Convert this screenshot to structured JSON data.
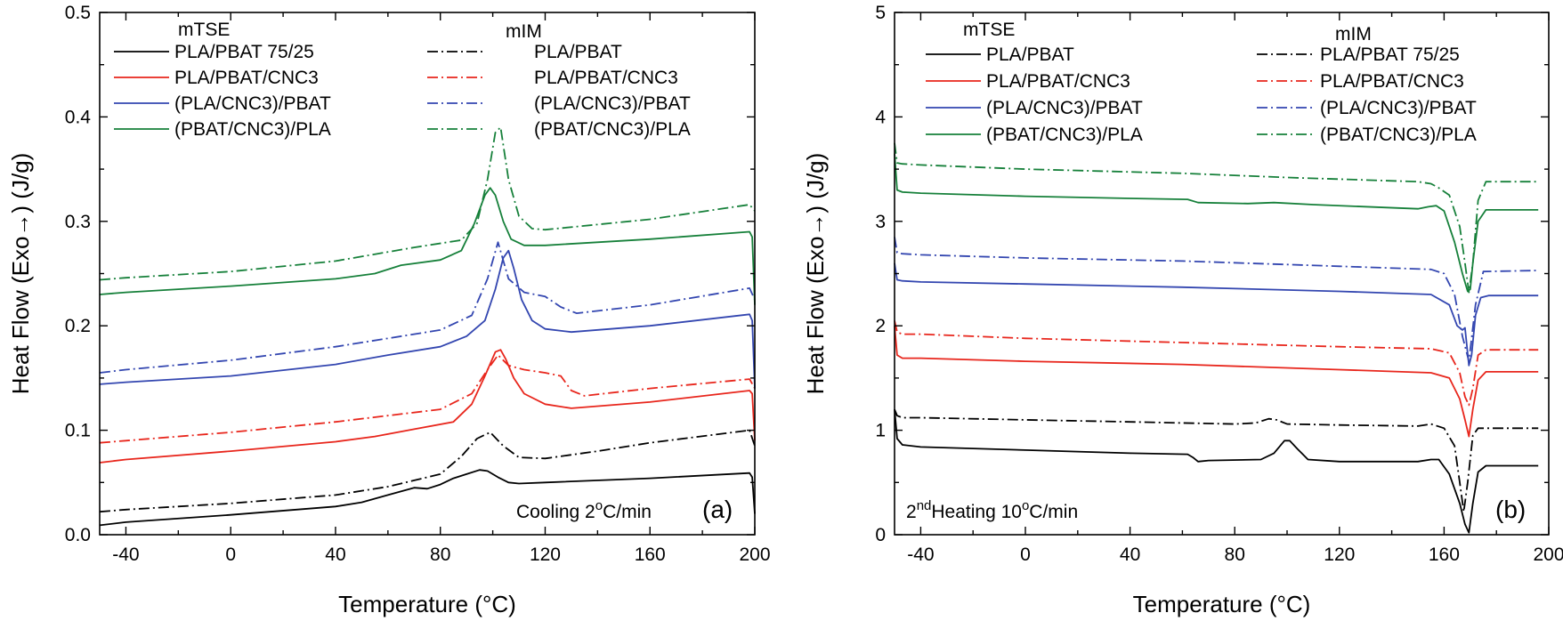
{
  "chart_data": [
    {
      "type": "line",
      "panel_label": "(a)",
      "condition": {
        "prefix": "Cooling 2",
        "deg": "o",
        "suffix": "C/min"
      },
      "xlabel": "Temperature (°C)",
      "ylabel": "Heat Flow (Exo→) (J/g)",
      "xlim": [
        -50,
        200
      ],
      "ylim": [
        0,
        0.5
      ],
      "xticks": [
        -40,
        0,
        40,
        80,
        120,
        160,
        200
      ],
      "yticks": [
        0.0,
        0.1,
        0.2,
        0.3,
        0.4,
        0.5
      ],
      "yticklabels": [
        "0.0",
        "0.1",
        "0.2",
        "0.3",
        "0.4",
        "0.5"
      ],
      "legend_groups": [
        {
          "heading": "mTSE",
          "items": [
            {
              "label": "PLA/PBAT 75/25",
              "color": "#000000",
              "dash": "solid"
            },
            {
              "label": "PLA/PBAT/CNC3",
              "color": "#e8261c",
              "dash": "solid"
            },
            {
              "label": "(PLA/CNC3)/PBAT",
              "color": "#3346b0",
              "dash": "solid"
            },
            {
              "label": "(PBAT/CNC3)/PLA",
              "color": "#16803a",
              "dash": "solid"
            }
          ]
        },
        {
          "heading": "mIM",
          "items": [
            {
              "label": "PLA/PBAT",
              "color": "#000000",
              "dash": "dashdot"
            },
            {
              "label": "PLA/PBAT/CNC3",
              "color": "#e8261c",
              "dash": "dashdot"
            },
            {
              "label": "(PLA/CNC3)/PBAT",
              "color": "#3346b0",
              "dash": "dashdot"
            },
            {
              "label": "(PBAT/CNC3)/PLA",
              "color": "#16803a",
              "dash": "dashdot"
            }
          ]
        }
      ],
      "series": [
        {
          "name": "mTSE PLA/PBAT 75/25",
          "color": "#000000",
          "dash": "solid",
          "x": [
            -50,
            -40,
            0,
            40,
            50,
            60,
            70,
            75,
            80,
            85,
            90,
            95,
            98,
            102,
            106,
            110,
            120,
            160,
            198,
            199,
            200
          ],
          "y": [
            0.009,
            0.012,
            0.019,
            0.027,
            0.031,
            0.038,
            0.045,
            0.044,
            0.048,
            0.054,
            0.058,
            0.062,
            0.061,
            0.055,
            0.05,
            0.049,
            0.05,
            0.054,
            0.059,
            0.055,
            0.02
          ]
        },
        {
          "name": "mIM PLA/PBAT",
          "color": "#000000",
          "dash": "dashdot",
          "x": [
            -50,
            -40,
            0,
            40,
            60,
            80,
            88,
            94,
            99,
            104,
            110,
            120,
            140,
            160,
            198,
            200
          ],
          "y": [
            0.022,
            0.024,
            0.03,
            0.038,
            0.046,
            0.058,
            0.075,
            0.092,
            0.098,
            0.085,
            0.074,
            0.073,
            0.08,
            0.088,
            0.1,
            0.085
          ]
        },
        {
          "name": "mTSE PLA/PBAT/CNC3",
          "color": "#e8261c",
          "dash": "solid",
          "x": [
            -50,
            -40,
            0,
            40,
            55,
            70,
            85,
            92,
            97,
            101,
            103,
            105,
            108,
            112,
            120,
            130,
            160,
            198,
            199,
            200
          ],
          "y": [
            0.069,
            0.072,
            0.08,
            0.089,
            0.094,
            0.101,
            0.108,
            0.125,
            0.152,
            0.175,
            0.177,
            0.168,
            0.15,
            0.135,
            0.125,
            0.121,
            0.127,
            0.138,
            0.135,
            0.09
          ]
        },
        {
          "name": "mIM PLA/PBAT/CNC3",
          "color": "#e8261c",
          "dash": "dashdot",
          "x": [
            -50,
            -40,
            0,
            40,
            80,
            92,
            98,
            102,
            106,
            112,
            120,
            126,
            130,
            135,
            160,
            198,
            200
          ],
          "y": [
            0.088,
            0.09,
            0.098,
            0.108,
            0.12,
            0.135,
            0.158,
            0.172,
            0.162,
            0.158,
            0.155,
            0.152,
            0.138,
            0.133,
            0.14,
            0.149,
            0.14
          ]
        },
        {
          "name": "mTSE (PLA/CNC3)/PBAT",
          "color": "#3346b0",
          "dash": "solid",
          "x": [
            -50,
            -40,
            0,
            40,
            60,
            80,
            90,
            97,
            101,
            104,
            106,
            108,
            111,
            115,
            120,
            130,
            160,
            198,
            199,
            200
          ],
          "y": [
            0.144,
            0.146,
            0.152,
            0.163,
            0.172,
            0.18,
            0.19,
            0.205,
            0.235,
            0.265,
            0.272,
            0.255,
            0.225,
            0.205,
            0.197,
            0.194,
            0.2,
            0.211,
            0.205,
            0.14
          ]
        },
        {
          "name": "mIM (PLA/CNC3)/PBAT",
          "color": "#3346b0",
          "dash": "dashdot",
          "x": [
            -50,
            -40,
            0,
            40,
            80,
            92,
            98,
            102,
            106,
            112,
            120,
            126,
            132,
            160,
            198,
            200
          ],
          "y": [
            0.155,
            0.158,
            0.167,
            0.18,
            0.196,
            0.21,
            0.245,
            0.28,
            0.245,
            0.232,
            0.228,
            0.218,
            0.212,
            0.22,
            0.236,
            0.225
          ]
        },
        {
          "name": "mTSE (PBAT/CNC3)/PLA",
          "color": "#16803a",
          "dash": "solid",
          "x": [
            -50,
            -40,
            0,
            40,
            55,
            65,
            80,
            88,
            93,
            97,
            99,
            101,
            104,
            107,
            112,
            120,
            160,
            198,
            199,
            200
          ],
          "y": [
            0.23,
            0.232,
            0.238,
            0.245,
            0.25,
            0.258,
            0.263,
            0.272,
            0.298,
            0.325,
            0.332,
            0.325,
            0.3,
            0.283,
            0.277,
            0.277,
            0.283,
            0.29,
            0.285,
            0.22
          ]
        },
        {
          "name": "mIM (PBAT/CNC3)/PLA",
          "color": "#16803a",
          "dash": "dashdot",
          "x": [
            -50,
            -40,
            0,
            40,
            70,
            88,
            94,
            98,
            101,
            103,
            106,
            110,
            115,
            120,
            160,
            198,
            200
          ],
          "y": [
            0.244,
            0.246,
            0.252,
            0.262,
            0.275,
            0.282,
            0.298,
            0.34,
            0.385,
            0.39,
            0.34,
            0.305,
            0.293,
            0.292,
            0.302,
            0.316,
            0.31
          ]
        }
      ]
    },
    {
      "type": "line",
      "panel_label": "(b)",
      "condition": {
        "prefix": "2",
        "sup": "nd",
        "suffix": "Heating 10",
        "deg": "o",
        "suffix2": "C/min"
      },
      "xlabel": "Temperature (°C)",
      "ylabel": "Heat Flow (Exo→) (J/g)",
      "xlim": [
        -50,
        200
      ],
      "ylim": [
        0,
        5
      ],
      "xticks": [
        -40,
        0,
        40,
        80,
        120,
        160,
        200
      ],
      "yticks": [
        0,
        1,
        2,
        3,
        4,
        5
      ],
      "yticklabels": [
        "0",
        "1",
        "2",
        "3",
        "4",
        "5"
      ],
      "legend_groups": [
        {
          "heading": "mTSE",
          "items": [
            {
              "label": "PLA/PBAT",
              "color": "#000000",
              "dash": "solid"
            },
            {
              "label": "PLA/PBAT/CNC3",
              "color": "#e8261c",
              "dash": "solid"
            },
            {
              "label": "(PLA/CNC3)/PBAT",
              "color": "#3346b0",
              "dash": "solid"
            },
            {
              "label": "(PBAT/CNC3)/PLA",
              "color": "#16803a",
              "dash": "solid"
            }
          ]
        },
        {
          "heading": "mIM",
          "items": [
            {
              "label": "PLA/PBAT 75/25",
              "color": "#000000",
              "dash": "dashdot"
            },
            {
              "label": "PLA/PBAT/CNC3",
              "color": "#e8261c",
              "dash": "dashdot"
            },
            {
              "label": "(PLA/CNC3)/PBAT",
              "color": "#3346b0",
              "dash": "dashdot"
            },
            {
              "label": "(PBAT/CNC3)/PLA",
              "color": "#16803a",
              "dash": "dashdot"
            }
          ]
        }
      ],
      "series": [
        {
          "name": "mTSE PLA/PBAT",
          "color": "#000000",
          "dash": "solid",
          "x": [
            -50,
            -49,
            -47,
            -40,
            0,
            40,
            62,
            64,
            66,
            70,
            90,
            95,
            99,
            101,
            104,
            108,
            120,
            150,
            155,
            158,
            162,
            166,
            168,
            169.5,
            171,
            173,
            176,
            196
          ],
          "y": [
            1.2,
            0.92,
            0.86,
            0.84,
            0.81,
            0.78,
            0.77,
            0.74,
            0.7,
            0.71,
            0.72,
            0.78,
            0.9,
            0.9,
            0.82,
            0.72,
            0.7,
            0.7,
            0.72,
            0.72,
            0.58,
            0.3,
            0.1,
            0.02,
            0.3,
            0.6,
            0.66,
            0.66
          ]
        },
        {
          "name": "mIM PLA/PBAT 75/25",
          "color": "#000000",
          "dash": "dashdot",
          "x": [
            -50,
            -49,
            -47,
            -40,
            0,
            40,
            80,
            88,
            93,
            96,
            100,
            120,
            150,
            155,
            160,
            164,
            166,
            167.5,
            169,
            171,
            173,
            176,
            196
          ],
          "y": [
            1.2,
            1.14,
            1.12,
            1.12,
            1.1,
            1.08,
            1.06,
            1.07,
            1.11,
            1.1,
            1.06,
            1.05,
            1.04,
            1.06,
            1.02,
            0.85,
            0.5,
            0.22,
            0.5,
            0.95,
            1.02,
            1.02,
            1.02
          ]
        },
        {
          "name": "mTSE PLA/PBAT/CNC3",
          "color": "#e8261c",
          "dash": "solid",
          "x": [
            -50,
            -49,
            -47,
            -40,
            0,
            60,
            120,
            155,
            162,
            166,
            168,
            169.5,
            171,
            173,
            176,
            196
          ],
          "y": [
            2.0,
            1.72,
            1.69,
            1.69,
            1.66,
            1.63,
            1.58,
            1.55,
            1.5,
            1.3,
            1.1,
            0.94,
            1.2,
            1.48,
            1.56,
            1.56
          ]
        },
        {
          "name": "mIM PLA/PBAT/CNC3",
          "color": "#e8261c",
          "dash": "dashdot",
          "x": [
            -50,
            -49,
            -47,
            -40,
            0,
            60,
            120,
            155,
            162,
            166,
            168,
            169.5,
            171,
            173,
            176,
            196
          ],
          "y": [
            2.05,
            1.94,
            1.92,
            1.92,
            1.88,
            1.84,
            1.8,
            1.78,
            1.74,
            1.55,
            1.32,
            1.24,
            1.4,
            1.72,
            1.77,
            1.77
          ]
        },
        {
          "name": "mTSE (PLA/CNC3)/PBAT",
          "color": "#3346b0",
          "dash": "solid",
          "x": [
            -50,
            -49,
            -47,
            -40,
            0,
            60,
            120,
            155,
            162,
            165,
            167,
            168,
            169.5,
            170.5,
            172,
            174,
            177,
            196
          ],
          "y": [
            2.6,
            2.44,
            2.43,
            2.42,
            2.4,
            2.37,
            2.33,
            2.3,
            2.2,
            2.0,
            1.96,
            1.98,
            1.62,
            1.72,
            2.1,
            2.27,
            2.29,
            2.29
          ]
        },
        {
          "name": "mIM (PLA/CNC3)/PBAT",
          "color": "#3346b0",
          "dash": "dashdot",
          "x": [
            -50,
            -49,
            -47,
            -40,
            0,
            60,
            120,
            155,
            160,
            164,
            167,
            169.5,
            172,
            175,
            196
          ],
          "y": [
            2.85,
            2.7,
            2.69,
            2.68,
            2.65,
            2.62,
            2.57,
            2.54,
            2.5,
            2.3,
            1.9,
            1.66,
            2.2,
            2.52,
            2.53
          ]
        },
        {
          "name": "mTSE (PBAT/CNC3)/PLA",
          "color": "#16803a",
          "dash": "solid",
          "x": [
            -50,
            -49,
            -47,
            -40,
            0,
            40,
            62,
            66,
            85,
            95,
            110,
            150,
            154,
            157,
            160,
            164,
            167,
            169,
            170,
            171,
            173,
            176,
            196
          ],
          "y": [
            3.65,
            3.3,
            3.28,
            3.27,
            3.24,
            3.22,
            3.21,
            3.18,
            3.17,
            3.18,
            3.16,
            3.12,
            3.14,
            3.15,
            3.1,
            2.8,
            2.5,
            2.33,
            2.35,
            2.6,
            3.0,
            3.11,
            3.11
          ]
        },
        {
          "name": "mIM (PBAT/CNC3)/PLA",
          "color": "#16803a",
          "dash": "dashdot",
          "x": [
            -50,
            -49,
            -47,
            -40,
            0,
            60,
            100,
            150,
            155,
            158,
            162,
            166,
            168,
            169.5,
            171,
            173,
            176,
            196
          ],
          "y": [
            3.75,
            3.56,
            3.55,
            3.54,
            3.5,
            3.46,
            3.42,
            3.38,
            3.36,
            3.32,
            3.25,
            2.95,
            2.6,
            2.32,
            2.6,
            3.2,
            3.38,
            3.38
          ]
        }
      ]
    }
  ]
}
